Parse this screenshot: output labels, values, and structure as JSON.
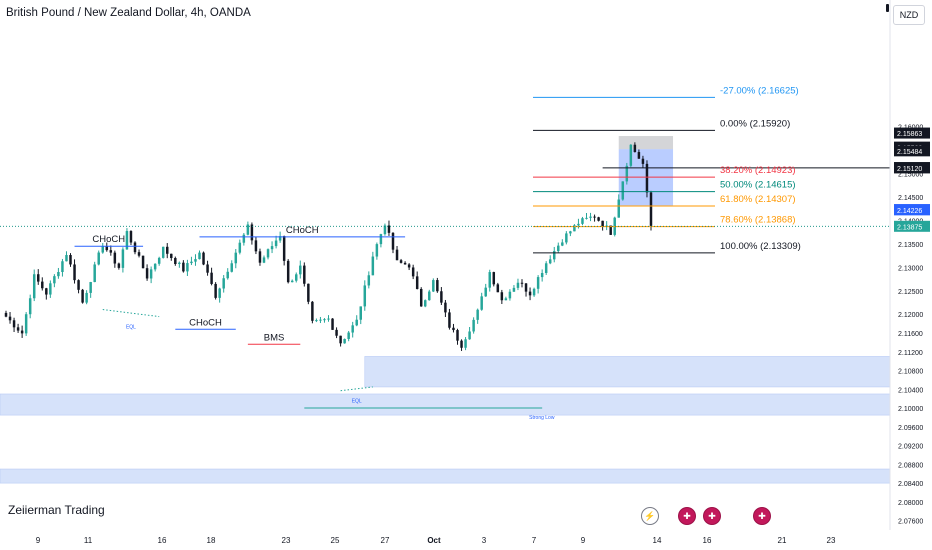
{
  "header": {
    "title": "British Pound / New Zealand Dollar, 4h, OANDA",
    "currency_badge": "NZD"
  },
  "watermark": "Zeiierman Trading",
  "events": [
    {
      "icon": "flash-icon",
      "glyph": "⚡"
    },
    {
      "icon": "uk-flag-icon",
      "glyph": "✚"
    },
    {
      "icon": "uk-flag-icon",
      "glyph": "✚"
    },
    {
      "icon": "uk-flag-icon",
      "glyph": "✚"
    }
  ],
  "colors": {
    "bull": "#26a69a",
    "bear": "#131722",
    "ob_zone": "#d6e2fa",
    "structure_blue": "#2962ff",
    "bms_red": "#f23645",
    "eql_teal": "#26a69a",
    "fib_neg27": "#2196f3",
    "fib_0": "#131722",
    "fib_382": "#f23645",
    "fib_50": "#00897b",
    "fib_618": "#ff9800",
    "fib_786": "#ff9800",
    "fib_100": "#131722",
    "current_price": "#00897b",
    "blue_badge": "#2962ff"
  },
  "chart_data": {
    "type": "candlestick",
    "symbol": "GBPNZD",
    "timeframe": "4h",
    "ylim": [
      2.074,
      2.187
    ],
    "y_ticks": [
      "2.07600",
      "2.08000",
      "2.08400",
      "2.08800",
      "2.09200",
      "2.09600",
      "2.10000",
      "2.10400",
      "2.10800",
      "2.11200",
      "2.11600",
      "2.12000",
      "2.12500",
      "2.13000",
      "2.13500",
      "2.14000",
      "2.14500",
      "2.15000",
      "2.15500",
      "2.16000"
    ],
    "x_ticks": [
      "9",
      "11",
      "16",
      "18",
      "23",
      "25",
      "27",
      "Oct",
      "3",
      "7",
      "9",
      "14",
      "16",
      "21",
      "23"
    ],
    "bar_count": 161,
    "path": [
      [
        0,
        2.1195
      ],
      [
        4,
        2.116
      ],
      [
        7,
        2.128
      ],
      [
        10,
        2.1245
      ],
      [
        15,
        2.133
      ],
      [
        19,
        2.1225
      ],
      [
        24,
        2.135
      ],
      [
        28,
        2.13
      ],
      [
        30,
        2.1375
      ],
      [
        35,
        2.128
      ],
      [
        39,
        2.134
      ],
      [
        44,
        2.1295
      ],
      [
        48,
        2.133
      ],
      [
        52,
        2.124
      ],
      [
        56,
        2.1315
      ],
      [
        60,
        2.1385
      ],
      [
        63,
        2.131
      ],
      [
        68,
        2.137
      ],
      [
        70,
        2.1265
      ],
      [
        73,
        2.13
      ],
      [
        76,
        2.118
      ],
      [
        80,
        2.119
      ],
      [
        83,
        2.114
      ],
      [
        87,
        2.1185
      ],
      [
        91,
        2.1325
      ],
      [
        94,
        2.1395
      ],
      [
        97,
        2.131
      ],
      [
        100,
        2.1305
      ],
      [
        103,
        2.122
      ],
      [
        106,
        2.127
      ],
      [
        110,
        2.1175
      ],
      [
        113,
        2.1135
      ],
      [
        117,
        2.1205
      ],
      [
        120,
        2.129
      ],
      [
        123,
        2.123
      ],
      [
        127,
        2.127
      ],
      [
        130,
        2.1245
      ],
      [
        134,
        2.131
      ],
      [
        138,
        2.136
      ],
      [
        142,
        2.1395
      ],
      [
        146,
        2.141
      ],
      [
        150,
        2.1375
      ],
      [
        155,
        2.156
      ],
      [
        158,
        2.152
      ],
      [
        160,
        2.1388
      ]
    ],
    "annotations": [
      {
        "text": "CHoCH",
        "kind": "choch"
      },
      {
        "text": "CHoCH",
        "kind": "choch"
      },
      {
        "text": "CHoCH",
        "kind": "choch"
      },
      {
        "text": "BMS",
        "kind": "bms"
      },
      {
        "text": "EQL",
        "kind": "eql"
      },
      {
        "text": "EQL",
        "kind": "eql"
      },
      {
        "text": "Strong Low",
        "kind": "strong-low"
      }
    ],
    "structure_lines": [
      {
        "price": 2.1345,
        "from_bar": 17,
        "to_bar": 34,
        "color": "structure_blue",
        "label": 0
      },
      {
        "price": 2.1168,
        "from_bar": 42,
        "to_bar": 57,
        "color": "structure_blue",
        "label": 1
      },
      {
        "price": 2.1365,
        "from_bar": 48,
        "to_bar": 99,
        "color": "structure_blue",
        "label": 2
      },
      {
        "price": 2.1136,
        "from_bar": 60,
        "to_bar": 73,
        "color": "bms_red",
        "label": 3
      },
      {
        "price": 2.1,
        "from_bar": 74,
        "to_bar": 133,
        "color": "eql_teal",
        "label": 6
      }
    ],
    "eql_lines": [
      {
        "from_bar": 24,
        "to_bar": 38,
        "p1": 2.121,
        "p2": 2.1195,
        "label": 4
      },
      {
        "from_bar": 83,
        "to_bar": 91,
        "p1": 2.1037,
        "p2": 2.1045,
        "label": 5
      }
    ],
    "zones": [
      {
        "top": 2.111,
        "bottom": 2.1045,
        "from_bar": 89,
        "to_bar": 161
      },
      {
        "top": 2.103,
        "bottom": 2.0985,
        "from_bar": 0,
        "to_bar": 161
      },
      {
        "top": 2.087,
        "bottom": 2.084,
        "from_bar": 0,
        "to_bar": 161
      }
    ],
    "fibonacci": [
      {
        "level": "-27.00%",
        "price": "2.16625",
        "text": "-27.00% (2.16625)",
        "color": "fib_neg27"
      },
      {
        "level": "0.00%",
        "price": "2.15920",
        "text": "0.00% (2.15920)",
        "color": "fib_0"
      },
      {
        "level": "38.20%",
        "price": "2.14923",
        "text": "38.20% (2.14923)",
        "color": "fib_382"
      },
      {
        "level": "50.00%",
        "price": "2.14615",
        "text": "50.00% (2.14615)",
        "color": "fib_50"
      },
      {
        "level": "61.80%",
        "price": "2.14307",
        "text": "61.80% (2.14307)",
        "color": "fib_618"
      },
      {
        "level": "78.60%",
        "price": "2.13868",
        "text": "78.60% (2.13868)",
        "color": "fib_786"
      },
      {
        "level": "100.00%",
        "price": "2.13309",
        "text": "100.00% (2.13309)",
        "color": "fib_100"
      }
    ],
    "price_badges": [
      {
        "text": "2.15863",
        "bg": "#131722",
        "fg": "#ffffff"
      },
      {
        "text": "2.15563",
        "bg": "#131722",
        "fg": "#ffffff"
      },
      {
        "text": "2.15484",
        "bg": "#131722",
        "fg": "#ffffff"
      },
      {
        "text": "2.15128",
        "bg": "#131722",
        "fg": "#ffffff"
      },
      {
        "text": "2.15120",
        "bg": "#131722",
        "fg": "#ffffff"
      },
      {
        "text": "2.14232",
        "bg": "#2962ff",
        "fg": "#ffffff"
      },
      {
        "text": "2.14226",
        "bg": "#2962ff",
        "fg": "#ffffff"
      },
      {
        "text": "2.13875",
        "bg": "#26a69a",
        "fg": "#ffffff"
      }
    ],
    "grid": false,
    "current_price": "2.13875",
    "horizontal_line": "2.15120",
    "long_short_boxes": [
      {
        "kind": "gray",
        "top": 2.158,
        "bottom": 2.1552,
        "from_bar": 152,
        "to_bar": 161
      },
      {
        "kind": "blue",
        "top": 2.1552,
        "bottom": 2.1432,
        "from_bar": 152,
        "to_bar": 161
      }
    ]
  }
}
